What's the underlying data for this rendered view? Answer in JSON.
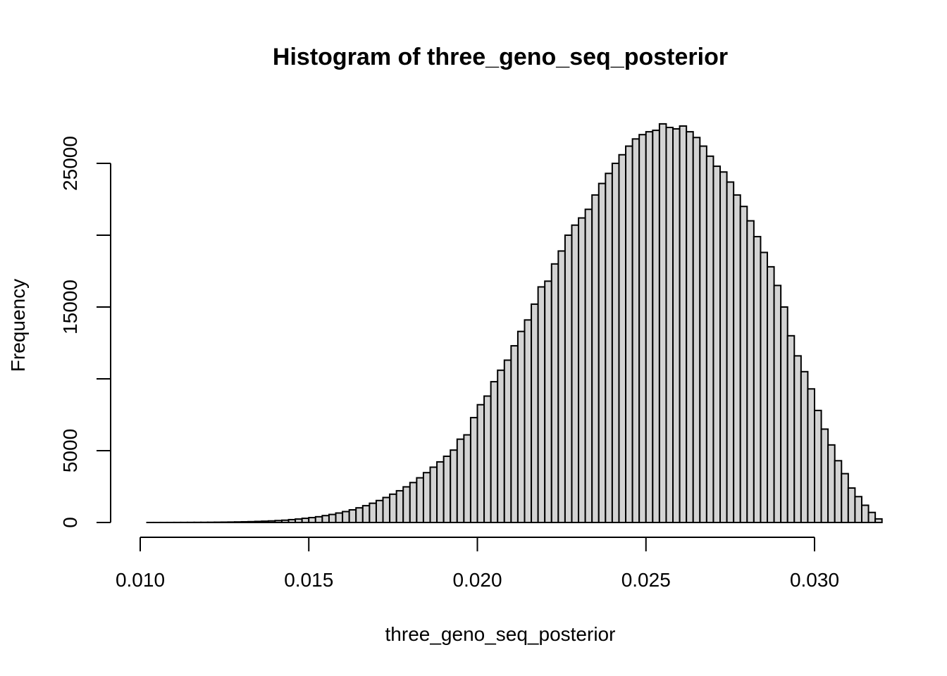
{
  "chart_data": {
    "type": "bar",
    "title": "Histogram of three_geno_seq_posterior",
    "xlabel": "three_geno_seq_posterior",
    "ylabel": "Frequency",
    "xlim": [
      0.01,
      0.0315
    ],
    "ylim": [
      0,
      27500
    ],
    "bin_width": 0.0002,
    "x_start": 0.01,
    "x_ticks": [
      0.01,
      0.015,
      0.02,
      0.025,
      0.03
    ],
    "x_tick_labels": [
      "0.010",
      "0.015",
      "0.020",
      "0.025",
      "0.030"
    ],
    "y_ticks": [
      0,
      5000,
      10000,
      15000,
      20000,
      25000
    ],
    "y_tick_labels": [
      "0",
      "5000",
      "",
      "15000",
      "",
      "25000"
    ],
    "grid": false,
    "legend": "none",
    "colors": {
      "bar_fill": "#d3d3d3",
      "bar_stroke": "#000000"
    },
    "values": [
      0,
      1,
      1,
      2,
      3,
      4,
      6,
      8,
      10,
      12,
      15,
      20,
      25,
      32,
      40,
      50,
      60,
      75,
      90,
      110,
      135,
      160,
      200,
      240,
      290,
      340,
      400,
      480,
      560,
      660,
      760,
      880,
      1020,
      1170,
      1340,
      1530,
      1740,
      1970,
      2210,
      2480,
      2780,
      3110,
      3470,
      3850,
      4220,
      4610,
      5040,
      5800,
      6100,
      7300,
      8200,
      8800,
      9800,
      10600,
      11300,
      12300,
      13300,
      14100,
      15200,
      16400,
      16800,
      18000,
      18900,
      20000,
      20700,
      21200,
      21800,
      22800,
      23600,
      24300,
      25000,
      25600,
      26200,
      26700,
      27000,
      27200,
      27300,
      27750,
      27500,
      27400,
      27600,
      27200,
      26800,
      26200,
      25500,
      24800,
      24400,
      23700,
      22800,
      22000,
      21000,
      19900,
      18800,
      17800,
      16500,
      15000,
      13000,
      11600,
      10500,
      9300,
      7800,
      6500,
      5400,
      4300,
      3400,
      2400,
      1800,
      1200,
      700,
      250
    ]
  }
}
